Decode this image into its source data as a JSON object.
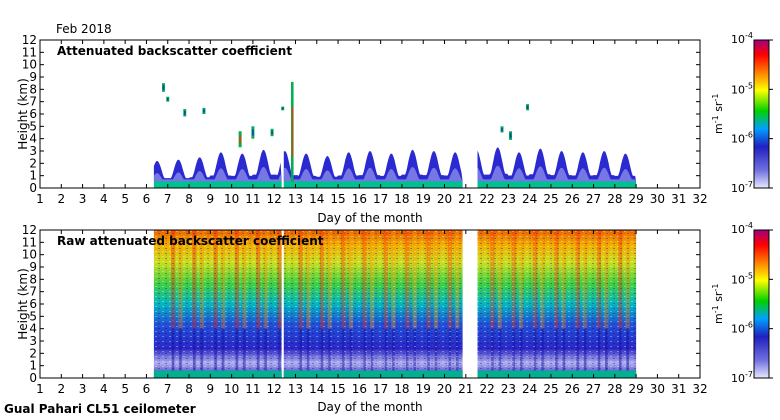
{
  "header": {
    "period": "Feb 2018"
  },
  "footer": {
    "station": "Gual Pahari CL51 ceilometer"
  },
  "chart_data": [
    {
      "type": "heatmap",
      "title": "Attenuated backscatter coefficient",
      "xlabel": "Day of the month",
      "ylabel": "Height (km)",
      "xlim": [
        1,
        32
      ],
      "ylim": [
        0,
        12
      ],
      "x_ticks": [
        1,
        2,
        3,
        4,
        5,
        6,
        7,
        8,
        9,
        10,
        11,
        12,
        13,
        14,
        15,
        16,
        17,
        18,
        19,
        20,
        21,
        22,
        23,
        24,
        25,
        26,
        27,
        28,
        29,
        30,
        31,
        32
      ],
      "y_ticks": [
        0,
        1,
        2,
        3,
        4,
        5,
        6,
        7,
        8,
        9,
        10,
        11,
        12
      ],
      "colorbar": {
        "label_base": "m",
        "label_exp1": "-1",
        "label_mid": " sr",
        "label_exp2": "-1",
        "scale": "log",
        "ticks": [
          {
            "base": "10",
            "exp": "-7"
          },
          {
            "base": "10",
            "exp": "-6"
          },
          {
            "base": "10",
            "exp": "-5"
          },
          {
            "base": "10",
            "exp": "-4"
          }
        ],
        "colors": [
          "#e8e8ff",
          "#2020c0",
          "#00a0ff",
          "#00d000",
          "#ffff00",
          "#ff8000",
          "#ff0000",
          "#a00080"
        ]
      },
      "data_gaps_days": [
        [
          1.0,
          6.35
        ],
        [
          12.35,
          12.45
        ],
        [
          20.85,
          21.55
        ],
        [
          29.0,
          32.0
        ]
      ],
      "boundary_layer_top_km_by_day": [
        {
          "day": 6.5,
          "top": 2.2
        },
        {
          "day": 7.5,
          "top": 2.3
        },
        {
          "day": 8.5,
          "top": 2.5
        },
        {
          "day": 9.5,
          "top": 2.9
        },
        {
          "day": 10.5,
          "top": 2.8
        },
        {
          "day": 11.5,
          "top": 3.1
        },
        {
          "day": 12.8,
          "top": 3.0
        },
        {
          "day": 13.5,
          "top": 2.8
        },
        {
          "day": 14.5,
          "top": 2.6
        },
        {
          "day": 15.5,
          "top": 2.9
        },
        {
          "day": 16.5,
          "top": 3.0
        },
        {
          "day": 17.5,
          "top": 2.8
        },
        {
          "day": 18.5,
          "top": 3.1
        },
        {
          "day": 19.5,
          "top": 3.0
        },
        {
          "day": 20.5,
          "top": 2.9
        },
        {
          "day": 21.8,
          "top": 3.1
        },
        {
          "day": 22.5,
          "top": 3.3
        },
        {
          "day": 23.5,
          "top": 2.9
        },
        {
          "day": 24.5,
          "top": 3.2
        },
        {
          "day": 25.5,
          "top": 3.0
        },
        {
          "day": 26.5,
          "top": 2.9
        },
        {
          "day": 27.5,
          "top": 3.0
        },
        {
          "day": 28.5,
          "top": 2.8
        }
      ],
      "cloud_features": [
        {
          "day": 6.8,
          "bottom": 7.8,
          "top": 8.5
        },
        {
          "day": 7.0,
          "bottom": 7.0,
          "top": 7.4
        },
        {
          "day": 7.8,
          "bottom": 5.8,
          "top": 6.4
        },
        {
          "day": 8.7,
          "bottom": 6.0,
          "top": 6.5
        },
        {
          "day": 10.4,
          "bottom": 3.3,
          "top": 4.6
        },
        {
          "day": 11.0,
          "bottom": 4.0,
          "top": 5.0
        },
        {
          "day": 11.9,
          "bottom": 4.2,
          "top": 4.8
        },
        {
          "day": 12.4,
          "bottom": 6.3,
          "top": 6.6
        },
        {
          "day": 12.85,
          "bottom": 0.5,
          "top": 8.6
        },
        {
          "day": 22.7,
          "bottom": 4.5,
          "top": 5.0
        },
        {
          "day": 23.1,
          "bottom": 3.9,
          "top": 4.6
        },
        {
          "day": 23.9,
          "bottom": 6.3,
          "top": 6.8
        }
      ]
    },
    {
      "type": "heatmap",
      "title": "Raw attenuated backscatter coefficient",
      "xlabel": "Day of the month",
      "ylabel": "Height (km)",
      "xlim": [
        1,
        32
      ],
      "ylim": [
        0,
        12
      ],
      "x_ticks": [
        1,
        2,
        3,
        4,
        5,
        6,
        7,
        8,
        9,
        10,
        11,
        12,
        13,
        14,
        15,
        16,
        17,
        18,
        19,
        20,
        21,
        22,
        23,
        24,
        25,
        26,
        27,
        28,
        29,
        30,
        31,
        32
      ],
      "y_ticks": [
        0,
        1,
        2,
        3,
        4,
        5,
        6,
        7,
        8,
        9,
        10,
        11,
        12
      ],
      "colorbar": {
        "label_base": "m",
        "label_exp1": "-1",
        "label_mid": " sr",
        "label_exp2": "-1",
        "scale": "log",
        "ticks": [
          {
            "base": "10",
            "exp": "-7"
          },
          {
            "base": "10",
            "exp": "-6"
          },
          {
            "base": "10",
            "exp": "-5"
          },
          {
            "base": "10",
            "exp": "-4"
          }
        ],
        "colors": [
          "#e8e8ff",
          "#2020c0",
          "#00a0ff",
          "#00d000",
          "#ffff00",
          "#ff8000",
          "#ff0000",
          "#a00080"
        ]
      },
      "data_gaps_days": [
        [
          1.0,
          6.35
        ],
        [
          12.35,
          12.45
        ],
        [
          20.85,
          21.55
        ],
        [
          29.0,
          32.0
        ]
      ]
    }
  ]
}
